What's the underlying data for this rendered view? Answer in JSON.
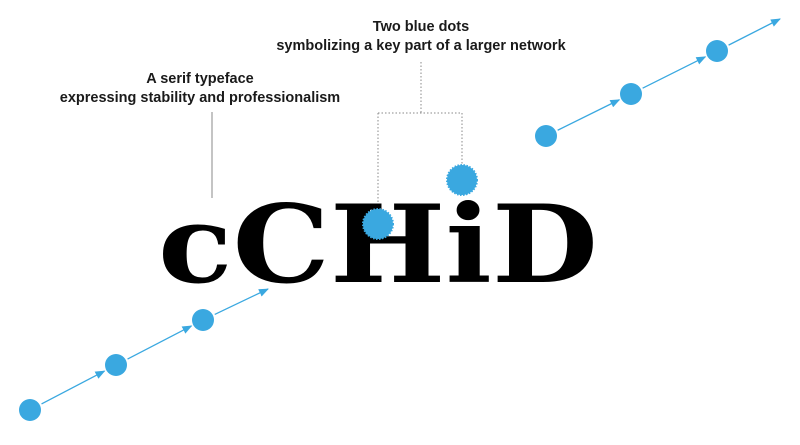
{
  "annotations": {
    "serif": {
      "line1": "A serif typeface",
      "line2": "expressing stability and professionalism"
    },
    "dots": {
      "line1": "Two blue dots",
      "line2": "symbolizing a key part of a larger network"
    }
  },
  "logo": {
    "text": "cCHiD",
    "color": "#000000"
  },
  "colors": {
    "network_blue": "#3aa8e0",
    "leader_line": "#888888"
  }
}
